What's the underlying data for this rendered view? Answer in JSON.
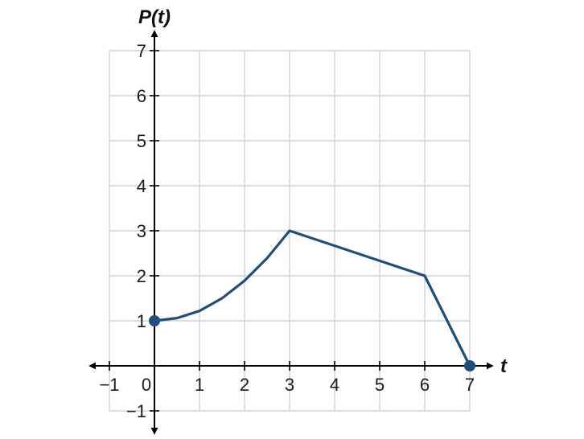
{
  "chart_data": {
    "type": "line",
    "xlabel": "t",
    "ylabel": "P(t)",
    "xlim": [
      -1,
      7
    ],
    "ylim": [
      -1,
      7
    ],
    "grid": true,
    "x_ticks": [
      -1,
      0,
      1,
      2,
      3,
      4,
      5,
      6,
      7
    ],
    "y_ticks": [
      -1,
      1,
      2,
      3,
      4,
      5,
      6,
      7
    ],
    "x_tick_labels": [
      "−1",
      "0",
      "1",
      "2",
      "3",
      "4",
      "5",
      "6",
      "7"
    ],
    "y_tick_labels": [
      "−1",
      "1",
      "2",
      "3",
      "4",
      "5",
      "6",
      "7"
    ],
    "colors": {
      "series": "#1f4e79"
    },
    "series": [
      {
        "points": [
          {
            "x": 0,
            "y": 1
          },
          {
            "x": 0.5,
            "y": 1.06
          },
          {
            "x": 1,
            "y": 1.22
          },
          {
            "x": 1.5,
            "y": 1.5
          },
          {
            "x": 2,
            "y": 1.89
          },
          {
            "x": 2.5,
            "y": 2.39
          },
          {
            "x": 3,
            "y": 3
          },
          {
            "x": 6,
            "y": 2
          },
          {
            "x": 7,
            "y": 0
          }
        ],
        "endpoints": [
          {
            "x": 0,
            "y": 1
          },
          {
            "x": 7,
            "y": 0
          }
        ]
      }
    ]
  }
}
